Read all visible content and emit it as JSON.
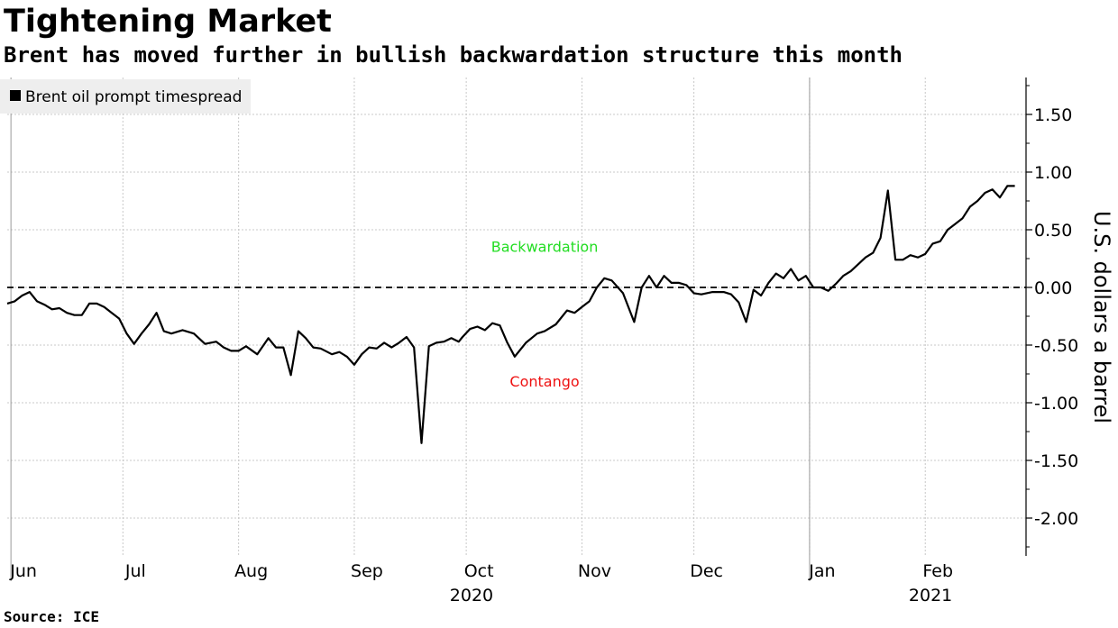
{
  "title": "Tightening Market",
  "subtitle": "Brent has moved further in bullish backwardation structure this month",
  "source": "Source: ICE",
  "chart_data": {
    "type": "line",
    "legend": {
      "label": "Brent oil prompt timespread",
      "placement": "top-left"
    },
    "ylabel": "U.S. dollars a barrel",
    "ylim": [
      -2.3,
      1.85
    ],
    "y_ticks": [
      {
        "value": 1.5,
        "label": "1.50"
      },
      {
        "value": 1.0,
        "label": "1.00"
      },
      {
        "value": 0.5,
        "label": "0.50"
      },
      {
        "value": 0.0,
        "label": "0.00"
      },
      {
        "value": -0.5,
        "label": "-0.50"
      },
      {
        "value": -1.0,
        "label": "-1.00"
      },
      {
        "value": -1.5,
        "label": "-1.50"
      },
      {
        "value": -2.0,
        "label": "-2.00"
      }
    ],
    "x_range": [
      "2020-05-31",
      "2021-02-28"
    ],
    "x_month_labels": [
      {
        "date": "2020-06-01",
        "label": "Jun"
      },
      {
        "date": "2020-07-01",
        "label": "Jul"
      },
      {
        "date": "2020-08-01",
        "label": "Aug"
      },
      {
        "date": "2020-09-01",
        "label": "Sep"
      },
      {
        "date": "2020-10-01",
        "label": "Oct"
      },
      {
        "date": "2020-11-01",
        "label": "Nov"
      },
      {
        "date": "2020-12-01",
        "label": "Dec"
      },
      {
        "date": "2021-01-01",
        "label": "Jan"
      },
      {
        "date": "2021-02-01",
        "label": "Feb"
      }
    ],
    "x_year_labels": [
      {
        "date": "2020-09-30",
        "label": "2020"
      },
      {
        "date": "2021-01-31",
        "label": "2021"
      }
    ],
    "year_boundaries": [
      "2020-06-01",
      "2021-01-01"
    ],
    "reference_line": {
      "y": 0.0,
      "style": "dashed"
    },
    "annotations": [
      {
        "text": "Backwardation",
        "date": "2020-10-22",
        "y": 0.31,
        "color": "#22dd22"
      },
      {
        "text": "Contango",
        "date": "2020-10-22",
        "y": -0.86,
        "color": "#ee1111"
      }
    ],
    "grid": true,
    "series": [
      {
        "name": "Brent oil prompt timespread",
        "color": "#000000",
        "x": [
          "2020-05-31",
          "2020-06-02",
          "2020-06-04",
          "2020-06-06",
          "2020-06-08",
          "2020-06-10",
          "2020-06-12",
          "2020-06-14",
          "2020-06-16",
          "2020-06-18",
          "2020-06-20",
          "2020-06-22",
          "2020-06-24",
          "2020-06-26",
          "2020-06-28",
          "2020-06-30",
          "2020-07-02",
          "2020-07-04",
          "2020-07-06",
          "2020-07-08",
          "2020-07-10",
          "2020-07-12",
          "2020-07-14",
          "2020-07-17",
          "2020-07-20",
          "2020-07-23",
          "2020-07-26",
          "2020-07-28",
          "2020-07-30",
          "2020-08-01",
          "2020-08-03",
          "2020-08-06",
          "2020-08-09",
          "2020-08-11",
          "2020-08-13",
          "2020-08-15",
          "2020-08-17",
          "2020-08-19",
          "2020-08-21",
          "2020-08-23",
          "2020-08-26",
          "2020-08-28",
          "2020-08-30",
          "2020-09-01",
          "2020-09-03",
          "2020-09-05",
          "2020-09-07",
          "2020-09-09",
          "2020-09-11",
          "2020-09-13",
          "2020-09-15",
          "2020-09-17",
          "2020-09-19",
          "2020-09-21",
          "2020-09-23",
          "2020-09-25",
          "2020-09-27",
          "2020-09-29",
          "2020-09-30",
          "2020-10-02",
          "2020-10-04",
          "2020-10-06",
          "2020-10-08",
          "2020-10-10",
          "2020-10-12",
          "2020-10-14",
          "2020-10-17",
          "2020-10-20",
          "2020-10-22",
          "2020-10-25",
          "2020-10-28",
          "2020-10-30",
          "2020-11-01",
          "2020-11-03",
          "2020-11-05",
          "2020-11-07",
          "2020-11-09",
          "2020-11-12",
          "2020-11-15",
          "2020-11-17",
          "2020-11-19",
          "2020-11-21",
          "2020-11-23",
          "2020-11-25",
          "2020-11-27",
          "2020-11-29",
          "2020-12-01",
          "2020-12-03",
          "2020-12-06",
          "2020-12-09",
          "2020-12-11",
          "2020-12-13",
          "2020-12-15",
          "2020-12-17",
          "2020-12-19",
          "2020-12-21",
          "2020-12-23",
          "2020-12-25",
          "2020-12-27",
          "2020-12-29",
          "2020-12-31",
          "2021-01-02",
          "2021-01-04",
          "2021-01-06",
          "2021-01-08",
          "2021-01-10",
          "2021-01-12",
          "2021-01-14",
          "2021-01-16",
          "2021-01-18",
          "2021-01-20",
          "2021-01-22",
          "2021-01-24",
          "2021-01-26",
          "2021-01-28",
          "2021-01-30",
          "2021-02-01",
          "2021-02-03",
          "2021-02-05",
          "2021-02-07",
          "2021-02-09",
          "2021-02-11",
          "2021-02-13",
          "2021-02-15",
          "2021-02-17",
          "2021-02-19",
          "2021-02-21",
          "2021-02-23",
          "2021-02-25"
        ],
        "y": [
          -0.14,
          -0.12,
          -0.07,
          -0.04,
          -0.12,
          -0.15,
          -0.19,
          -0.18,
          -0.22,
          -0.24,
          -0.24,
          -0.14,
          -0.14,
          -0.17,
          -0.22,
          -0.27,
          -0.4,
          -0.49,
          -0.4,
          -0.32,
          -0.22,
          -0.38,
          -0.4,
          -0.37,
          -0.4,
          -0.49,
          -0.47,
          -0.52,
          -0.55,
          -0.55,
          -0.51,
          -0.58,
          -0.44,
          -0.52,
          -0.52,
          -0.76,
          -0.38,
          -0.44,
          -0.52,
          -0.53,
          -0.58,
          -0.56,
          -0.6,
          -0.67,
          -0.58,
          -0.52,
          -0.53,
          -0.48,
          -0.52,
          -0.48,
          -0.43,
          -0.52,
          -1.35,
          -0.51,
          -0.48,
          -0.47,
          -0.44,
          -0.47,
          -0.43,
          -0.36,
          -0.34,
          -0.37,
          -0.31,
          -0.33,
          -0.48,
          -0.6,
          -0.48,
          -0.4,
          -0.38,
          -0.32,
          -0.2,
          -0.22,
          -0.17,
          -0.12,
          0.0,
          0.08,
          0.06,
          -0.05,
          -0.3,
          0.0,
          0.1,
          0.0,
          0.1,
          0.04,
          0.04,
          0.02,
          -0.05,
          -0.06,
          -0.04,
          -0.04,
          -0.06,
          -0.13,
          -0.3,
          -0.02,
          -0.07,
          0.04,
          0.12,
          0.08,
          0.16,
          0.06,
          0.1,
          0.0,
          0.0,
          -0.03,
          0.03,
          0.1,
          0.14,
          0.2,
          0.26,
          0.3,
          0.43,
          0.84,
          0.24,
          0.24,
          0.28,
          0.26,
          0.29,
          0.38,
          0.4,
          0.5,
          0.55,
          0.6,
          0.7,
          0.75,
          0.82,
          0.85,
          0.78,
          0.88,
          0.88
        ]
      }
    ]
  }
}
